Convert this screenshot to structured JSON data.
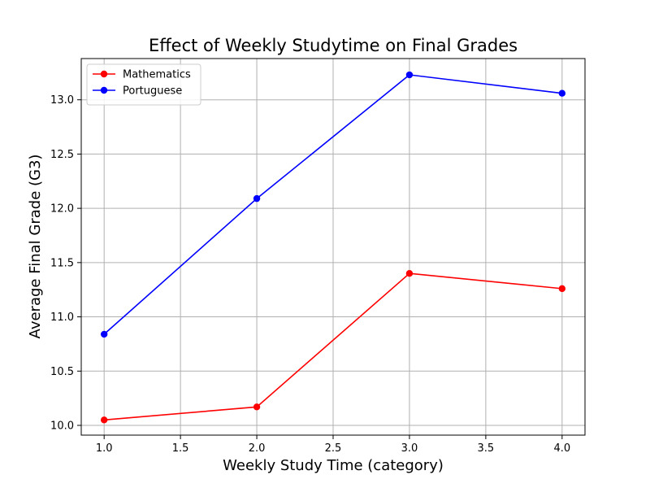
{
  "chart_data": {
    "type": "line",
    "title": "Effect of Weekly Studytime on Final Grades",
    "xlabel": "Weekly Study Time (category)",
    "ylabel": "Average Final Grade (G3)",
    "x": [
      1.0,
      2.0,
      3.0,
      4.0
    ],
    "xlim": [
      0.85,
      4.15
    ],
    "ylim": [
      9.91,
      13.38
    ],
    "xticks": [
      1.0,
      1.5,
      2.0,
      2.5,
      3.0,
      3.5,
      4.0
    ],
    "xtick_labels": [
      "1.0",
      "1.5",
      "2.0",
      "2.5",
      "3.0",
      "3.5",
      "4.0"
    ],
    "yticks": [
      10.0,
      10.5,
      11.0,
      11.5,
      12.0,
      12.5,
      13.0
    ],
    "ytick_labels": [
      "10.0",
      "10.5",
      "11.0",
      "11.5",
      "12.0",
      "12.5",
      "13.0"
    ],
    "grid": true,
    "legend_position": "upper-left",
    "series": [
      {
        "name": "Mathematics",
        "color": "#ff0000",
        "marker": "circle",
        "values": [
          10.05,
          10.17,
          11.4,
          11.26
        ]
      },
      {
        "name": "Portuguese",
        "color": "#0000ff",
        "marker": "circle",
        "values": [
          10.84,
          12.09,
          13.23,
          13.06
        ]
      }
    ]
  }
}
